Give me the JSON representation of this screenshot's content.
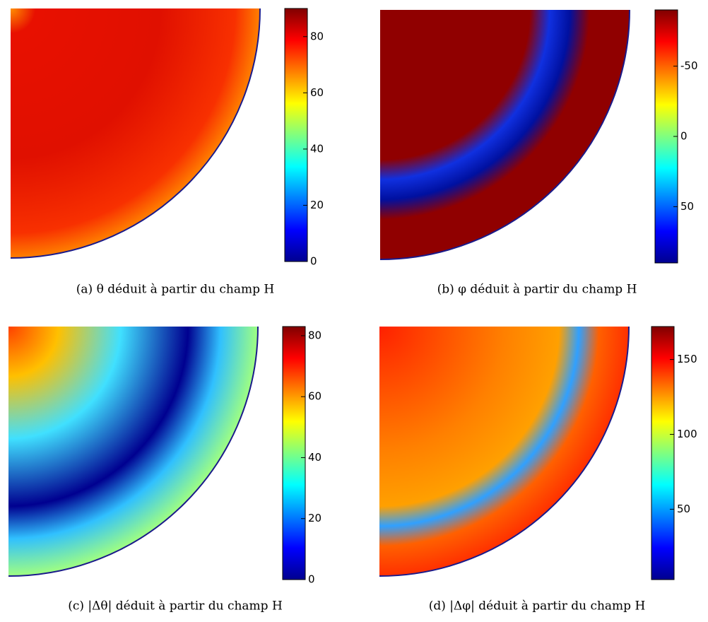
{
  "chart_data": [
    {
      "type": "heatmap",
      "caption": "(a) θ déduit à partir du champ H",
      "colormap": "jet",
      "ylim": [
        0,
        90
      ],
      "yticks": [
        0,
        20,
        40,
        60,
        80
      ]
    },
    {
      "type": "heatmap",
      "caption": "(b) φ déduit à partir du champ H",
      "colormap": "jet",
      "ylim": [
        90,
        -90
      ],
      "yticks": [
        -50,
        0,
        50
      ]
    },
    {
      "type": "heatmap",
      "caption": "(c) |Δθ| déduit à partir du champ H",
      "colormap": "jet",
      "ylim": [
        0,
        83
      ],
      "yticks": [
        0,
        20,
        40,
        60,
        80
      ]
    },
    {
      "type": "heatmap",
      "caption": "(d) |Δφ| déduit à partir du champ H",
      "colormap": "jet",
      "ylim": [
        3,
        172
      ],
      "yticks": [
        50,
        100,
        150
      ]
    }
  ]
}
